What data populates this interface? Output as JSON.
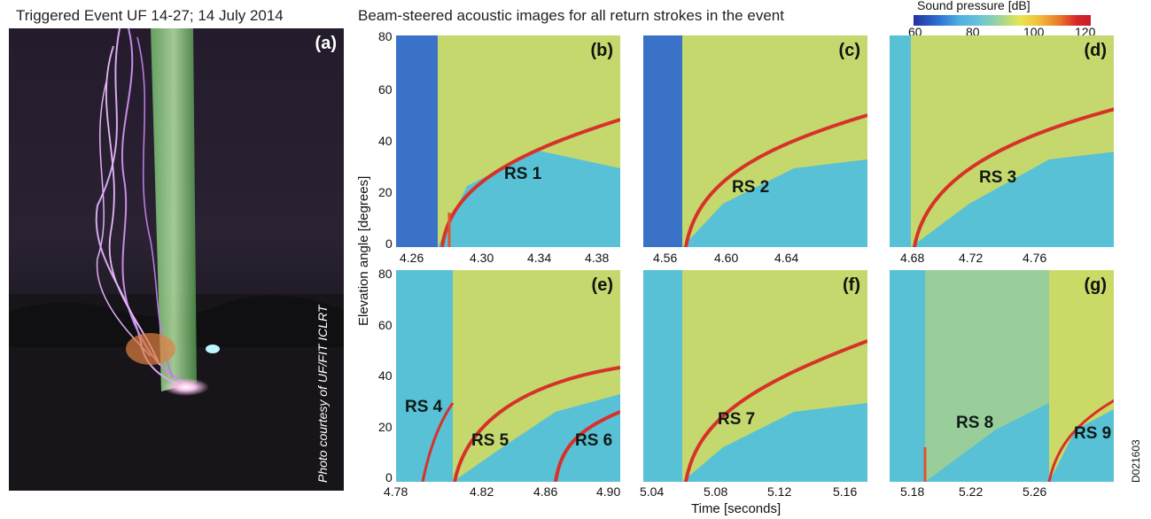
{
  "left_title": "Triggered Event UF 14-27; 14 July 2014",
  "right_title": "Beam-steered acoustic images for all return strokes in the event",
  "photo": {
    "label": "(a)",
    "credit": "Photo courtesy of UF/FIT ICLRT"
  },
  "colorbar": {
    "label": "Sound pressure [dB]",
    "ticks": [
      "60",
      "80",
      "100",
      "120"
    ],
    "range_db": [
      60,
      120
    ],
    "colors": [
      "#2232a0",
      "#4fb0e0",
      "#a8d690",
      "#e6e650",
      "#ea7a2c",
      "#c81e28"
    ]
  },
  "axes": {
    "ylabel": "Elevation angle [degrees]",
    "xlabel": "Time [seconds]",
    "yticks": [
      "0",
      "20",
      "40",
      "60",
      "80"
    ]
  },
  "panels": [
    {
      "label": "(b)",
      "xticks": [
        "4.26",
        "4.30",
        "4.34",
        "4.38"
      ],
      "strokes": [
        "RS 1"
      ]
    },
    {
      "label": "(c)",
      "xticks": [
        "4.56",
        "4.60",
        "4.64"
      ],
      "strokes": [
        "RS 2"
      ]
    },
    {
      "label": "(d)",
      "xticks": [
        "4.68",
        "4.72",
        "4.76"
      ],
      "strokes": [
        "RS 3"
      ]
    },
    {
      "label": "(e)",
      "xticks": [
        "4.78",
        "4.82",
        "4.86",
        "4.90"
      ],
      "strokes": [
        "RS 4",
        "RS 5",
        "RS 6"
      ]
    },
    {
      "label": "(f)",
      "xticks": [
        "5.04",
        "5.08",
        "5.12",
        "5.16"
      ],
      "strokes": [
        "RS 7"
      ]
    },
    {
      "label": "(g)",
      "xticks": [
        "5.18",
        "5.22",
        "5.26"
      ],
      "strokes": [
        "RS 8",
        "RS 9"
      ]
    }
  ],
  "doc_id": "D021603"
}
